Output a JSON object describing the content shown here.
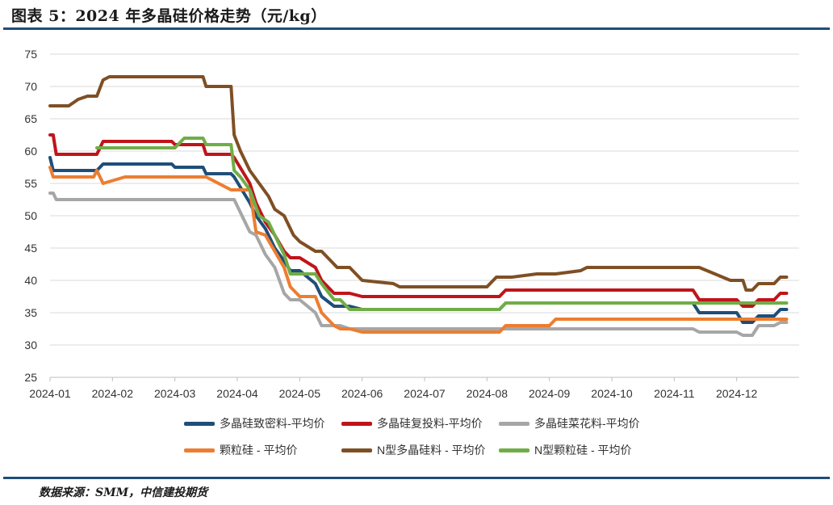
{
  "header": {
    "title": "图表 5：2024 年多晶硅价格走势（元/kg）"
  },
  "footer": {
    "source": "数据来源：SMM，中信建投期货"
  },
  "chart_data": {
    "type": "line",
    "title": "图表 5：2024 年多晶硅价格走势（元/kg）",
    "xlabel": "",
    "ylabel": "元/kg",
    "ylim": [
      25,
      75
    ],
    "yticks": [
      "25",
      "30",
      "35",
      "40",
      "45",
      "50",
      "55",
      "60",
      "65",
      "70",
      "75"
    ],
    "xlim": [
      0,
      12
    ],
    "xticks": [
      "2024-01",
      "2024-02",
      "2024-03",
      "2024-04",
      "2024-05",
      "2024-06",
      "2024-07",
      "2024-08",
      "2024-09",
      "2024-10",
      "2024-11",
      "2024-12"
    ],
    "grid": true,
    "legend_position": "bottom",
    "series": [
      {
        "name": "多晶硅致密料-平均价",
        "color": "#1f4e79",
        "x": [
          0,
          0.05,
          0.08,
          0.75,
          0.85,
          1.2,
          1.95,
          2.0,
          2.45,
          2.5,
          2.9,
          2.95,
          3.2,
          3.3,
          3.45,
          3.6,
          3.75,
          3.85,
          4.0,
          4.25,
          4.35,
          4.55,
          4.65,
          4.8,
          5.0,
          7.2,
          7.3,
          8.0,
          8.1,
          10.3,
          10.4,
          11.0,
          11.1,
          11.25,
          11.35,
          11.6,
          11.7,
          11.8
        ],
        "y": [
          59,
          57,
          57,
          57,
          58,
          58,
          58,
          57.5,
          57.5,
          56.5,
          56.5,
          56,
          52,
          50,
          48,
          45,
          43,
          41.5,
          41.5,
          39.5,
          37.5,
          36,
          36,
          36,
          35.5,
          35.5,
          36.5,
          36.5,
          36.5,
          36.5,
          35,
          35,
          33.5,
          33.5,
          34.5,
          34.5,
          35.5,
          35.5
        ]
      },
      {
        "name": "多晶硅复投料-平均价",
        "color": "#c0141b",
        "x": [
          0,
          0.05,
          0.1,
          0.75,
          0.85,
          1.2,
          1.95,
          2.0,
          2.45,
          2.5,
          2.9,
          2.95,
          3.2,
          3.3,
          3.45,
          3.6,
          3.75,
          3.85,
          4.0,
          4.25,
          4.35,
          4.55,
          4.65,
          4.8,
          5.0,
          7.2,
          7.3,
          8.0,
          8.1,
          10.3,
          10.4,
          11.0,
          11.1,
          11.25,
          11.35,
          11.6,
          11.7,
          11.8
        ],
        "y": [
          62.5,
          62.5,
          59.5,
          59.5,
          61.5,
          61.5,
          61.5,
          61,
          61,
          59.5,
          59.5,
          59,
          55,
          52,
          49,
          47,
          44.5,
          43.5,
          43.5,
          42,
          40,
          38,
          38,
          38,
          37.5,
          37.5,
          38.5,
          38.5,
          38.5,
          38.5,
          37,
          37,
          36,
          36,
          37,
          37,
          38,
          38
        ]
      },
      {
        "name": "多晶硅菜花料-平均价",
        "color": "#a6a6a6",
        "x": [
          0,
          0.05,
          0.1,
          0.75,
          0.85,
          1.2,
          1.95,
          2.0,
          2.45,
          2.5,
          2.9,
          2.95,
          3.2,
          3.3,
          3.45,
          3.6,
          3.75,
          3.85,
          4.0,
          4.25,
          4.35,
          4.55,
          4.65,
          4.8,
          5.0,
          7.2,
          7.3,
          8.0,
          8.1,
          10.3,
          10.4,
          11.0,
          11.1,
          11.25,
          11.35,
          11.6,
          11.7,
          11.8
        ],
        "y": [
          53.5,
          53.5,
          52.5,
          52.5,
          52.5,
          52.5,
          52.5,
          52.5,
          52.5,
          52.5,
          52.5,
          52.5,
          47.5,
          47,
          44,
          42,
          38,
          37,
          37,
          35,
          33,
          33,
          33,
          32.5,
          32.5,
          32.5,
          32.5,
          32.5,
          32.5,
          32.5,
          32,
          32,
          31.5,
          31.5,
          33,
          33,
          33.5,
          33.5
        ]
      },
      {
        "name": "颗粒硅 - 平均价",
        "color": "#ed7d31",
        "x": [
          0,
          0.05,
          0.08,
          0.7,
          0.75,
          0.85,
          1.2,
          1.95,
          2.0,
          2.45,
          2.5,
          2.9,
          2.95,
          3.2,
          3.3,
          3.45,
          3.6,
          3.75,
          3.85,
          4.0,
          4.25,
          4.35,
          4.55,
          4.65,
          4.8,
          5.0,
          7.2,
          7.3,
          8.0,
          8.1,
          10.3,
          10.4,
          11.0,
          11.1,
          11.25,
          11.35,
          11.6,
          11.7,
          11.8
        ],
        "y": [
          57.5,
          56,
          56,
          56,
          57,
          55,
          56,
          56,
          56,
          56,
          56,
          54,
          54,
          54,
          47.5,
          47,
          44.5,
          42,
          39,
          37.5,
          37.5,
          35,
          33,
          32.5,
          32.5,
          32,
          32,
          33,
          33,
          34,
          34,
          34,
          34,
          34,
          34,
          34,
          34,
          34,
          34
        ]
      },
      {
        "name": "N型多晶硅料 - 平均价",
        "color": "#7f4f24",
        "x": [
          0,
          0.3,
          0.45,
          0.6,
          0.75,
          0.85,
          0.95,
          1.5,
          2.0,
          2.45,
          2.5,
          2.9,
          2.95,
          3.05,
          3.2,
          3.35,
          3.5,
          3.6,
          3.75,
          3.9,
          4.0,
          4.25,
          4.35,
          4.5,
          4.6,
          4.8,
          5.0,
          5.5,
          5.6,
          6.8,
          7.0,
          7.15,
          7.4,
          7.8,
          8.1,
          8.5,
          8.6,
          10.3,
          10.4,
          10.9,
          11.0,
          11.1,
          11.15,
          11.25,
          11.35,
          11.6,
          11.7,
          11.8
        ],
        "y": [
          67,
          67,
          68,
          68.5,
          68.5,
          71,
          71.5,
          71.5,
          71.5,
          71.5,
          70,
          70,
          62.5,
          60,
          57,
          55,
          53,
          51,
          50,
          47,
          46,
          44.5,
          44.5,
          43,
          42,
          42,
          40,
          39.5,
          39,
          39,
          39,
          40.5,
          40.5,
          41,
          41,
          41.5,
          42,
          42,
          42,
          40,
          40,
          40,
          38.5,
          38.5,
          39.5,
          39.5,
          40.5,
          40.5
        ]
      },
      {
        "name": "N型颗粒硅 - 平均价",
        "color": "#70ad47",
        "x": [
          0.75,
          0.85,
          1.4,
          2.0,
          2.15,
          2.45,
          2.5,
          2.9,
          2.95,
          3.05,
          3.2,
          3.35,
          3.5,
          3.6,
          3.75,
          3.85,
          4.0,
          4.25,
          4.35,
          4.55,
          4.65,
          4.8,
          5.0,
          7.2,
          7.3,
          8.0,
          8.1,
          10.3,
          10.4,
          11.0,
          11.1,
          11.25,
          11.35,
          11.6,
          11.7,
          11.8
        ],
        "y": [
          60.5,
          60.5,
          60.5,
          60.5,
          62,
          62,
          61,
          61,
          57,
          56,
          54,
          50,
          49,
          47,
          44,
          41,
          41,
          41,
          39.5,
          37,
          37,
          35.5,
          35.5,
          35.5,
          36.5,
          36.5,
          36.5,
          36.5,
          36.5,
          36.5,
          36.5,
          36.5,
          36.5,
          36.5,
          36.5,
          36.5
        ]
      }
    ]
  }
}
